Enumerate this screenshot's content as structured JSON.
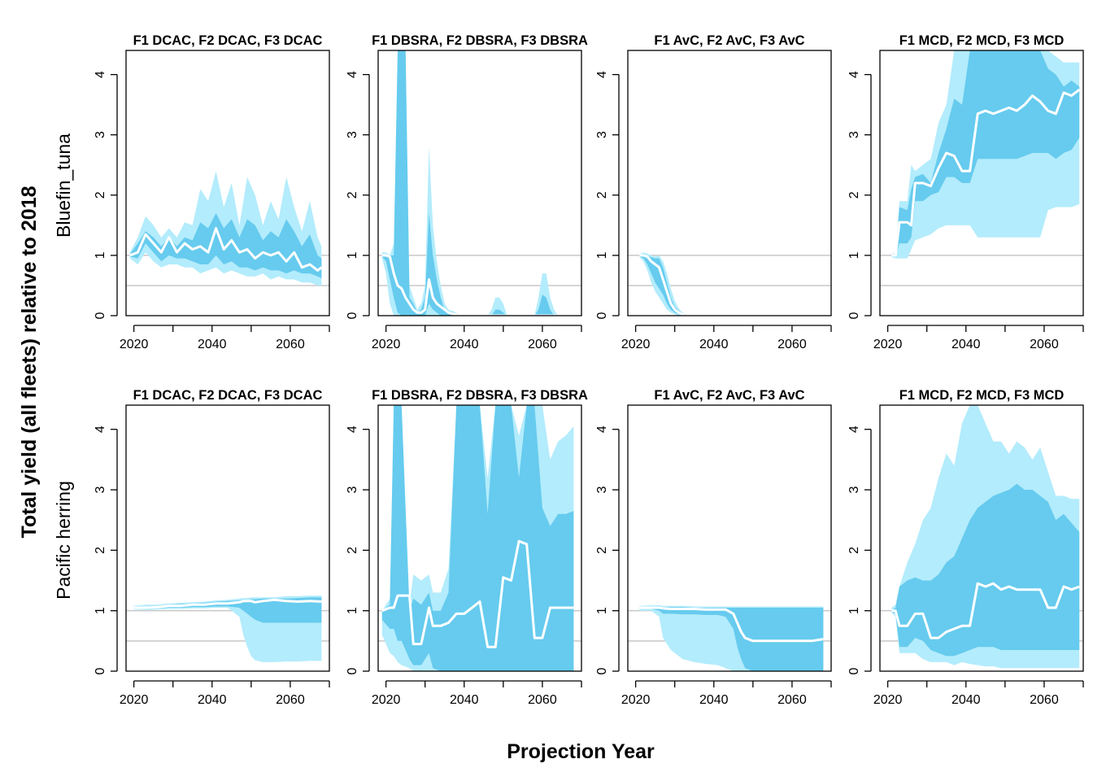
{
  "figure": {
    "ylabel": "Total yield (all fleets) relative to 2018",
    "xlabel": "Projection Year",
    "colors": {
      "outer_band": "#b3ecfc",
      "inner_band": "#66cbee",
      "median_line": "#ffffff",
      "reference_lines": "#c8c8c8",
      "axis": "#000000"
    },
    "axis": {
      "xlim": [
        2018,
        2070
      ],
      "ylim": [
        0,
        4.4
      ],
      "xticks": [
        2020,
        2030,
        2040,
        2050,
        2060,
        2070
      ],
      "xtick_labels": [
        "2020",
        "",
        "2040",
        "",
        "2060",
        ""
      ],
      "yticks": [
        0,
        1,
        2,
        3,
        4
      ],
      "reference_lines": [
        1,
        0.5
      ]
    },
    "rows": [
      {
        "label": "Bluefin_tuna"
      },
      {
        "label": "Pacific herring"
      }
    ]
  },
  "chart_data": [
    {
      "type": "area",
      "title": "F1 DCAC, F2 DCAC, F3 DCAC",
      "stock": "Bluefin_tuna",
      "row": 0,
      "col": 0,
      "x": [
        2019,
        2021,
        2023,
        2025,
        2027,
        2029,
        2031,
        2033,
        2035,
        2037,
        2039,
        2041,
        2043,
        2045,
        2047,
        2049,
        2051,
        2053,
        2055,
        2057,
        2059,
        2061,
        2063,
        2065,
        2067,
        2068
      ],
      "outer_upper": [
        1.05,
        1.3,
        1.65,
        1.5,
        1.3,
        1.45,
        1.3,
        1.55,
        1.5,
        2.1,
        1.9,
        2.4,
        1.8,
        2.2,
        1.5,
        2.3,
        2.0,
        1.5,
        1.9,
        1.6,
        2.3,
        1.8,
        1.4,
        1.9,
        1.3,
        1.15
      ],
      "inner_upper": [
        1.02,
        1.2,
        1.4,
        1.3,
        1.15,
        1.3,
        1.15,
        1.3,
        1.25,
        1.55,
        1.45,
        1.7,
        1.45,
        1.6,
        1.3,
        1.6,
        1.5,
        1.25,
        1.4,
        1.3,
        1.6,
        1.4,
        1.15,
        1.35,
        1.0,
        0.95
      ],
      "median": [
        1.0,
        1.05,
        1.35,
        1.2,
        1.05,
        1.3,
        1.05,
        1.2,
        1.1,
        1.15,
        1.05,
        1.45,
        1.1,
        1.25,
        1.05,
        1.1,
        0.95,
        1.05,
        1.0,
        1.05,
        0.9,
        1.05,
        0.8,
        0.85,
        0.75,
        0.8
      ],
      "inner_lower": [
        0.98,
        0.95,
        1.2,
        1.05,
        0.9,
        1.0,
        0.95,
        0.95,
        0.9,
        0.85,
        0.85,
        1.0,
        0.85,
        0.9,
        0.8,
        0.8,
        0.75,
        0.8,
        0.75,
        0.75,
        0.7,
        0.75,
        0.7,
        0.7,
        0.65,
        0.62
      ],
      "outer_lower": [
        0.95,
        0.85,
        1.05,
        0.9,
        0.8,
        0.85,
        0.85,
        0.8,
        0.8,
        0.7,
        0.75,
        0.8,
        0.7,
        0.75,
        0.7,
        0.65,
        0.65,
        0.7,
        0.6,
        0.65,
        0.6,
        0.6,
        0.55,
        0.55,
        0.5,
        0.5
      ]
    },
    {
      "type": "area",
      "title": "F1 DBSRA, F2 DBSRA, F3 DBSRA",
      "stock": "Bluefin_tuna",
      "row": 0,
      "col": 1,
      "x": [
        2019,
        2020,
        2021,
        2022,
        2023,
        2024,
        2025,
        2026,
        2027,
        2028,
        2029,
        2030,
        2031,
        2032,
        2033,
        2034,
        2035,
        2036,
        2037,
        2038,
        2039,
        2040,
        2046,
        2047,
        2048,
        2049,
        2050,
        2051,
        2058,
        2059,
        2060,
        2061,
        2062,
        2063,
        2064
      ],
      "outer_upper": [
        1.05,
        1.05,
        1.0,
        1.2,
        4.4,
        4.4,
        4.4,
        0.5,
        0.3,
        0.1,
        0.2,
        0.5,
        2.8,
        1.5,
        0.9,
        0.5,
        0.2,
        0.1,
        0.08,
        0.05,
        0,
        0,
        0,
        0.1,
        0.3,
        0.3,
        0.2,
        0,
        0,
        0.3,
        0.7,
        0.7,
        0.3,
        0.1,
        0
      ],
      "inner_upper": [
        1.0,
        1.0,
        1.0,
        1.0,
        4.4,
        4.4,
        4.4,
        0.3,
        0.2,
        0.05,
        0.1,
        0.3,
        1.7,
        1.0,
        0.6,
        0.3,
        0.1,
        0.05,
        0.05,
        0.02,
        0,
        0,
        0,
        0,
        0.1,
        0.1,
        0.05,
        0,
        0,
        0.1,
        0.35,
        0.3,
        0.1,
        0,
        0
      ],
      "median": [
        1.0,
        1.0,
        0.98,
        0.7,
        0.5,
        0.45,
        0.3,
        0.2,
        0.1,
        0.05,
        0.05,
        0.1,
        0.6,
        0.3,
        0.2,
        0.15,
        0.1,
        0.05,
        0.03,
        0.02,
        0,
        0,
        0,
        0,
        0,
        0,
        0,
        0,
        0,
        0,
        0,
        0,
        0,
        0,
        0
      ],
      "inner_lower": [
        0.98,
        0.9,
        0.6,
        0.3,
        0.05,
        0,
        0,
        0,
        0,
        0,
        0,
        0,
        0.2,
        0.1,
        0.05,
        0,
        0,
        0,
        0,
        0,
        0,
        0,
        0,
        0,
        0,
        0,
        0,
        0,
        0,
        0,
        0,
        0,
        0,
        0,
        0
      ],
      "outer_lower": [
        0.95,
        0.7,
        0.2,
        0,
        0,
        0,
        0,
        0,
        0,
        0,
        0,
        0,
        0,
        0,
        0,
        0,
        0,
        0,
        0,
        0,
        0,
        0,
        0,
        0,
        0,
        0,
        0,
        0,
        0,
        0,
        0,
        0,
        0,
        0,
        0
      ]
    },
    {
      "type": "area",
      "title": "F1 AvC, F2 AvC, F3 AvC",
      "stock": "Bluefin_tuna",
      "row": 0,
      "col": 2,
      "x": [
        2021,
        2022,
        2023,
        2024,
        2025,
        2026,
        2027,
        2028,
        2029,
        2030,
        2031,
        2032,
        2033,
        2034
      ],
      "outer_upper": [
        1.02,
        1.05,
        1.03,
        1.0,
        0.98,
        1.0,
        0.9,
        0.7,
        0.45,
        0.25,
        0.12,
        0.05,
        0.02,
        0
      ],
      "inner_upper": [
        1.0,
        1.02,
        1.0,
        0.97,
        0.95,
        0.95,
        0.8,
        0.55,
        0.3,
        0.15,
        0.08,
        0.03,
        0.01,
        0
      ],
      "median": [
        1.0,
        1.0,
        0.98,
        0.9,
        0.85,
        0.8,
        0.6,
        0.4,
        0.2,
        0.1,
        0.05,
        0.02,
        0,
        0
      ],
      "inner_lower": [
        0.98,
        0.95,
        0.85,
        0.7,
        0.55,
        0.45,
        0.35,
        0.2,
        0.1,
        0.05,
        0.02,
        0,
        0,
        0
      ],
      "outer_lower": [
        0.97,
        0.9,
        0.75,
        0.55,
        0.4,
        0.3,
        0.2,
        0.1,
        0.05,
        0.02,
        0,
        0,
        0,
        0
      ]
    },
    {
      "type": "area",
      "title": "F1 MCD, F2 MCD, F3 MCD",
      "stock": "Bluefin_tuna",
      "row": 0,
      "col": 3,
      "x": [
        2021,
        2022,
        2023,
        2025,
        2026,
        2027,
        2029,
        2031,
        2033,
        2035,
        2037,
        2039,
        2041,
        2043,
        2045,
        2047,
        2049,
        2051,
        2053,
        2055,
        2057,
        2059,
        2061,
        2063,
        2065,
        2067,
        2069
      ],
      "outer_upper": [
        1.02,
        1.05,
        1.9,
        1.9,
        2.5,
        2.4,
        2.5,
        2.6,
        3.2,
        3.5,
        4.4,
        4.4,
        4.4,
        4.4,
        4.4,
        4.4,
        4.4,
        4.4,
        4.4,
        4.4,
        4.4,
        4.4,
        4.4,
        4.3,
        4.2,
        4.2,
        4.2
      ],
      "inner_upper": [
        1.0,
        1.02,
        1.8,
        1.75,
        2.1,
        2.3,
        2.35,
        2.2,
        2.7,
        3.1,
        3.6,
        3.5,
        4.4,
        4.4,
        4.4,
        4.4,
        4.4,
        4.4,
        4.4,
        4.4,
        4.4,
        4.4,
        4.1,
        4.0,
        3.8,
        3.9,
        3.8
      ],
      "median": [
        1.0,
        1.0,
        1.55,
        1.55,
        1.5,
        2.2,
        2.2,
        2.15,
        2.45,
        2.7,
        2.65,
        2.4,
        2.4,
        3.35,
        3.4,
        3.35,
        3.4,
        3.45,
        3.4,
        3.5,
        3.65,
        3.55,
        3.4,
        3.35,
        3.7,
        3.65,
        3.75
      ],
      "inner_lower": [
        0.98,
        0.98,
        1.2,
        1.2,
        1.3,
        1.9,
        1.9,
        2.0,
        2.05,
        2.3,
        2.3,
        2.2,
        2.2,
        2.6,
        2.6,
        2.6,
        2.6,
        2.6,
        2.6,
        2.65,
        2.7,
        2.7,
        2.7,
        2.6,
        2.7,
        2.75,
        2.95
      ],
      "outer_lower": [
        0.97,
        0.95,
        0.95,
        0.95,
        1.1,
        1.25,
        1.3,
        1.35,
        1.45,
        1.5,
        1.5,
        1.5,
        1.5,
        1.3,
        1.3,
        1.3,
        1.3,
        1.3,
        1.3,
        1.3,
        1.3,
        1.3,
        1.75,
        1.8,
        1.8,
        1.8,
        1.85
      ]
    },
    {
      "type": "area",
      "title": "F1 DCAC, F2 DCAC, F3 DCAC",
      "stock": "Pacific herring",
      "row": 1,
      "col": 0,
      "x": [
        2020,
        2023,
        2026,
        2029,
        2032,
        2035,
        2038,
        2041,
        2044,
        2047,
        2048,
        2049,
        2050,
        2051,
        2053,
        2056,
        2059,
        2062,
        2065,
        2068
      ],
      "outer_upper": [
        1.08,
        1.1,
        1.1,
        1.12,
        1.13,
        1.14,
        1.15,
        1.17,
        1.18,
        1.2,
        1.21,
        1.21,
        1.22,
        1.22,
        1.22,
        1.22,
        1.24,
        1.24,
        1.25,
        1.25
      ],
      "inner_upper": [
        1.06,
        1.07,
        1.08,
        1.1,
        1.11,
        1.12,
        1.13,
        1.15,
        1.16,
        1.17,
        1.18,
        1.18,
        1.19,
        1.19,
        1.2,
        1.2,
        1.2,
        1.21,
        1.22,
        1.22
      ],
      "median": [
        1.05,
        1.05,
        1.06,
        1.08,
        1.08,
        1.1,
        1.1,
        1.12,
        1.12,
        1.14,
        1.16,
        1.16,
        1.16,
        1.14,
        1.16,
        1.18,
        1.16,
        1.15,
        1.16,
        1.15
      ],
      "inner_lower": [
        1.04,
        1.03,
        1.04,
        1.05,
        1.05,
        1.06,
        1.06,
        1.07,
        1.07,
        1.05,
        1.0,
        0.95,
        0.9,
        0.85,
        0.8,
        0.8,
        0.8,
        0.8,
        0.8,
        0.8
      ],
      "outer_lower": [
        1.02,
        1.01,
        1.02,
        1.03,
        1.03,
        1.04,
        1.04,
        1.05,
        1.05,
        0.9,
        0.6,
        0.4,
        0.25,
        0.18,
        0.15,
        0.15,
        0.16,
        0.16,
        0.17,
        0.17
      ]
    },
    {
      "type": "area",
      "title": "F1 DBSRA, F2 DBSRA, F3 DBSRA",
      "stock": "Pacific herring",
      "row": 1,
      "col": 1,
      "x": [
        2019,
        2021,
        2022,
        2023,
        2024,
        2026,
        2027,
        2029,
        2031,
        2032,
        2034,
        2036,
        2038,
        2040,
        2042,
        2044,
        2046,
        2048,
        2050,
        2052,
        2054,
        2056,
        2058,
        2060,
        2062,
        2064,
        2066,
        2068
      ],
      "outer_upper": [
        1.0,
        1.2,
        4.4,
        4.4,
        4.4,
        1.1,
        1.6,
        1.5,
        1.6,
        1.3,
        1.3,
        1.7,
        4.4,
        4.4,
        4.4,
        4.4,
        3.2,
        4.4,
        4.4,
        4.4,
        3.9,
        4.4,
        4.4,
        4.4,
        3.5,
        3.8,
        3.9,
        4.05
      ],
      "inner_upper": [
        1.0,
        1.1,
        4.4,
        4.4,
        4.4,
        1.0,
        1.2,
        1.1,
        1.3,
        1.0,
        1.0,
        1.3,
        4.4,
        4.4,
        4.4,
        4.4,
        2.6,
        4.4,
        4.4,
        4.4,
        3.2,
        4.4,
        4.4,
        2.7,
        2.4,
        2.6,
        2.6,
        2.65
      ],
      "median": [
        1.0,
        1.05,
        1.05,
        1.25,
        1.25,
        1.25,
        0.45,
        0.45,
        1.05,
        0.75,
        0.75,
        0.8,
        0.95,
        0.95,
        1.05,
        1.15,
        0.4,
        0.4,
        1.55,
        1.5,
        2.15,
        2.1,
        0.55,
        0.55,
        1.05,
        1.05,
        1.05,
        1.05
      ],
      "inner_lower": [
        0.85,
        0.7,
        0.7,
        0.5,
        0.5,
        0.2,
        0.1,
        0.1,
        0.3,
        0.05,
        0,
        0,
        0,
        0,
        0,
        0,
        0,
        0,
        0,
        0,
        0,
        0,
        0,
        0,
        0,
        0,
        0,
        0
      ],
      "outer_lower": [
        0.6,
        0.3,
        0.25,
        0.15,
        0.1,
        0.05,
        0,
        0,
        0,
        0,
        0,
        0,
        0,
        0,
        0,
        0,
        0,
        0,
        0,
        0,
        0,
        0,
        0,
        0,
        0,
        0,
        0,
        0
      ]
    },
    {
      "type": "area",
      "title": "F1 AvC, F2 AvC, F3 AvC",
      "stock": "Pacific herring",
      "row": 1,
      "col": 2,
      "x": [
        2021,
        2024,
        2026,
        2027,
        2029,
        2032,
        2035,
        2038,
        2041,
        2043,
        2045,
        2046,
        2047,
        2048,
        2050,
        2053,
        2056,
        2059,
        2062,
        2065,
        2068
      ],
      "outer_upper": [
        1.08,
        1.09,
        1.09,
        1.08,
        1.08,
        1.08,
        1.07,
        1.07,
        1.07,
        1.07,
        1.07,
        1.07,
        1.07,
        1.07,
        1.07,
        1.07,
        1.07,
        1.07,
        1.07,
        1.07,
        1.07
      ],
      "inner_upper": [
        1.06,
        1.07,
        1.07,
        1.06,
        1.06,
        1.06,
        1.05,
        1.05,
        1.05,
        1.05,
        1.05,
        1.05,
        1.05,
        1.05,
        1.05,
        1.05,
        1.05,
        1.05,
        1.05,
        1.05,
        1.05
      ],
      "median": [
        1.05,
        1.05,
        1.05,
        1.04,
        1.03,
        1.03,
        1.03,
        1.02,
        1.02,
        1.02,
        0.95,
        0.8,
        0.65,
        0.55,
        0.5,
        0.5,
        0.5,
        0.5,
        0.5,
        0.5,
        0.53
      ],
      "inner_lower": [
        1.03,
        1.03,
        1.0,
        0.95,
        0.95,
        0.94,
        0.94,
        0.93,
        0.93,
        0.9,
        0.7,
        0.4,
        0.2,
        0.05,
        0,
        0,
        0,
        0,
        0,
        0,
        0
      ],
      "outer_lower": [
        1.0,
        1.0,
        0.9,
        0.55,
        0.35,
        0.2,
        0.15,
        0.12,
        0.1,
        0.05,
        0,
        0,
        0,
        0,
        0,
        0,
        0,
        0,
        0,
        0,
        0
      ]
    },
    {
      "type": "area",
      "title": "F1 MCD, F2 MCD, F3 MCD",
      "stock": "Pacific herring",
      "row": 1,
      "col": 3,
      "x": [
        2021,
        2022,
        2023,
        2025,
        2027,
        2029,
        2031,
        2033,
        2035,
        2037,
        2039,
        2041,
        2043,
        2045,
        2047,
        2049,
        2051,
        2053,
        2055,
        2057,
        2059,
        2061,
        2063,
        2065,
        2067,
        2069
      ],
      "outer_upper": [
        1.05,
        1.1,
        1.4,
        1.8,
        2.1,
        2.5,
        2.7,
        3.2,
        3.6,
        3.4,
        4.1,
        4.4,
        4.4,
        4.1,
        3.8,
        3.8,
        3.6,
        3.8,
        3.7,
        3.5,
        3.7,
        3.3,
        2.9,
        2.9,
        2.85,
        2.85
      ],
      "inner_upper": [
        1.0,
        1.05,
        1.4,
        1.5,
        1.55,
        1.5,
        1.5,
        1.6,
        1.8,
        1.9,
        2.2,
        2.5,
        2.7,
        2.8,
        2.9,
        2.95,
        3.0,
        3.1,
        3.0,
        3.0,
        2.9,
        2.8,
        2.5,
        2.6,
        2.45,
        2.3
      ],
      "median": [
        1.0,
        1.0,
        0.75,
        0.75,
        0.95,
        0.95,
        0.55,
        0.55,
        0.65,
        0.7,
        0.75,
        0.75,
        1.45,
        1.4,
        1.45,
        1.35,
        1.4,
        1.35,
        1.35,
        1.35,
        1.35,
        1.05,
        1.05,
        1.4,
        1.35,
        1.4
      ],
      "inner_lower": [
        0.98,
        0.95,
        0.4,
        0.4,
        0.55,
        0.5,
        0.35,
        0.3,
        0.25,
        0.25,
        0.3,
        0.35,
        0.4,
        0.4,
        0.4,
        0.35,
        0.35,
        0.35,
        0.35,
        0.35,
        0.35,
        0.35,
        0.35,
        0.35,
        0.35,
        0.35
      ],
      "outer_lower": [
        0.97,
        0.9,
        0.3,
        0.3,
        0.3,
        0.2,
        0.15,
        0.15,
        0.15,
        0.1,
        0.15,
        0.12,
        0.1,
        0.08,
        0.08,
        0.05,
        0.05,
        0.05,
        0.05,
        0.05,
        0.05,
        0.05,
        0.05,
        0.05,
        0.05,
        0.05
      ]
    }
  ]
}
